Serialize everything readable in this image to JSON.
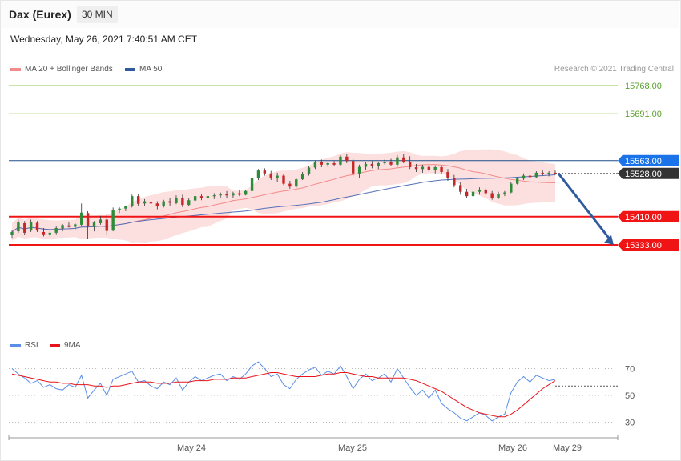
{
  "header": {
    "title": "Dax (Eurex)",
    "interval": "30 MIN",
    "timestamp": "Wednesday, May 26, 2021 7:40:51 AM CET",
    "credit": "Research © 2021 Trading Central"
  },
  "legend_price": [
    {
      "label": "MA 20 + Bollinger Bands",
      "color": "#f28b8b"
    },
    {
      "label": "MA 50",
      "color": "#2f5a9e"
    }
  ],
  "legend_rsi": [
    {
      "label": "RSI",
      "color": "#5b8ee6"
    },
    {
      "label": "9MA",
      "color": "#e8141b"
    }
  ],
  "colors": {
    "up": "#2e8b3a",
    "down": "#c62828",
    "resistance": "#8cc84b",
    "support": "#f01414",
    "current_line": "#1d4e89",
    "current_badge": "#1a73e8",
    "last_badge": "#333333",
    "band_fill": "#fbdada",
    "ma20": "#f28b8b",
    "ma50": "#5571b8",
    "forecast_arrow": "#2f5a9e"
  },
  "chart_data": [
    {
      "type": "candlestick",
      "ylim": [
        15120,
        15860
      ],
      "level_lines": [
        {
          "value": 15768.0,
          "label": "15768.00",
          "kind": "resistance"
        },
        {
          "value": 15691.0,
          "label": "15691.00",
          "kind": "resistance"
        },
        {
          "value": 15563.0,
          "label": "15563.00",
          "kind": "current"
        },
        {
          "value": 15528.0,
          "label": "15528.00",
          "kind": "last"
        },
        {
          "value": 15410.0,
          "label": "15410.00",
          "kind": "support"
        },
        {
          "value": 15333.0,
          "label": "15333.00",
          "kind": "support"
        }
      ],
      "x_ticks": [
        "May 24",
        "May 25",
        "May 26",
        "May 29"
      ],
      "forecast": {
        "from": 15528,
        "to": 15333
      },
      "candles": [
        [
          15361,
          15372,
          15352,
          15368
        ],
        [
          15370,
          15402,
          15365,
          15394
        ],
        [
          15392,
          15398,
          15360,
          15366
        ],
        [
          15372,
          15402,
          15368,
          15395
        ],
        [
          15393,
          15398,
          15368,
          15372
        ],
        [
          15368,
          15379,
          15356,
          15362
        ],
        [
          15362,
          15372,
          15355,
          15366
        ],
        [
          15366,
          15383,
          15362,
          15379
        ],
        [
          15378,
          15390,
          15370,
          15387
        ],
        [
          15386,
          15394,
          15380,
          15382
        ],
        [
          15382,
          15392,
          15375,
          15389
        ],
        [
          15388,
          15446,
          15385,
          15421
        ],
        [
          15420,
          15425,
          15350,
          15383
        ],
        [
          15382,
          15398,
          15370,
          15394
        ],
        [
          15392,
          15412,
          15388,
          15402
        ],
        [
          15402,
          15418,
          15360,
          15371
        ],
        [
          15372,
          15435,
          15370,
          15428
        ],
        [
          15428,
          15436,
          15420,
          15432
        ],
        [
          15432,
          15440,
          15425,
          15438
        ],
        [
          15438,
          15470,
          15435,
          15466
        ],
        [
          15466,
          15472,
          15440,
          15445
        ],
        [
          15446,
          15458,
          15440,
          15452
        ],
        [
          15450,
          15462,
          15438,
          15446
        ],
        [
          15446,
          15452,
          15430,
          15440
        ],
        [
          15440,
          15456,
          15435,
          15452
        ],
        [
          15452,
          15460,
          15440,
          15448
        ],
        [
          15447,
          15468,
          15444,
          15461
        ],
        [
          15462,
          15470,
          15436,
          15442
        ],
        [
          15442,
          15460,
          15438,
          15455
        ],
        [
          15454,
          15470,
          15450,
          15466
        ],
        [
          15466,
          15472,
          15455,
          15461
        ],
        [
          15461,
          15470,
          15452,
          15466
        ],
        [
          15466,
          15474,
          15458,
          15468
        ],
        [
          15468,
          15476,
          15460,
          15472
        ],
        [
          15472,
          15480,
          15462,
          15468
        ],
        [
          15468,
          15478,
          15460,
          15474
        ],
        [
          15474,
          15483,
          15466,
          15470
        ],
        [
          15470,
          15484,
          15468,
          15480
        ],
        [
          15480,
          15520,
          15476,
          15515
        ],
        [
          15515,
          15540,
          15510,
          15536
        ],
        [
          15536,
          15542,
          15522,
          15528
        ],
        [
          15528,
          15535,
          15510,
          15515
        ],
        [
          15515,
          15530,
          15505,
          15522
        ],
        [
          15522,
          15526,
          15496,
          15500
        ],
        [
          15500,
          15508,
          15486,
          15492
        ],
        [
          15492,
          15516,
          15488,
          15512
        ],
        [
          15512,
          15532,
          15510,
          15526
        ],
        [
          15526,
          15548,
          15522,
          15544
        ],
        [
          15544,
          15564,
          15540,
          15560
        ],
        [
          15560,
          15566,
          15545,
          15552
        ],
        [
          15552,
          15560,
          15546,
          15556
        ],
        [
          15556,
          15562,
          15548,
          15552
        ],
        [
          15552,
          15578,
          15548,
          15574
        ],
        [
          15574,
          15582,
          15556,
          15562
        ],
        [
          15562,
          15568,
          15520,
          15528
        ],
        [
          15528,
          15552,
          15515,
          15546
        ],
        [
          15546,
          15560,
          15538,
          15554
        ],
        [
          15554,
          15562,
          15542,
          15548
        ],
        [
          15548,
          15560,
          15540,
          15556
        ],
        [
          15556,
          15566,
          15552,
          15560
        ],
        [
          15560,
          15568,
          15548,
          15552
        ],
        [
          15552,
          15578,
          15546,
          15572
        ],
        [
          15572,
          15582,
          15556,
          15560
        ],
        [
          15560,
          15575,
          15540,
          15545
        ],
        [
          15545,
          15554,
          15532,
          15540
        ],
        [
          15540,
          15552,
          15530,
          15546
        ],
        [
          15546,
          15552,
          15532,
          15538
        ],
        [
          15538,
          15550,
          15528,
          15545
        ],
        [
          15545,
          15550,
          15526,
          15532
        ],
        [
          15532,
          15540,
          15508,
          15515
        ],
        [
          15515,
          15524,
          15490,
          15496
        ],
        [
          15496,
          15505,
          15470,
          15478
        ],
        [
          15478,
          15486,
          15460,
          15466
        ],
        [
          15466,
          15482,
          15462,
          15478
        ],
        [
          15478,
          15490,
          15470,
          15484
        ],
        [
          15484,
          15488,
          15468,
          15474
        ],
        [
          15474,
          15480,
          15456,
          15462
        ],
        [
          15462,
          15478,
          15458,
          15472
        ],
        [
          15472,
          15480,
          15466,
          15476
        ],
        [
          15476,
          15504,
          15474,
          15500
        ],
        [
          15500,
          15518,
          15498,
          15514
        ],
        [
          15514,
          15528,
          15510,
          15522
        ],
        [
          15522,
          15530,
          15514,
          15518
        ],
        [
          15518,
          15534,
          15516,
          15530
        ],
        [
          15530,
          15536,
          15522,
          15526
        ],
        [
          15526,
          15534,
          15520,
          15530
        ],
        [
          15530,
          15536,
          15524,
          15528
        ]
      ]
    },
    {
      "type": "line",
      "title": "RSI",
      "ylim": [
        20,
        80
      ],
      "y_ticks": [
        30,
        50,
        70
      ],
      "series": [
        {
          "name": "RSI",
          "values": [
            70,
            66,
            63,
            59,
            61,
            56,
            58,
            55,
            54,
            58,
            56,
            65,
            48,
            54,
            59,
            50,
            62,
            64,
            66,
            68,
            60,
            61,
            57,
            55,
            60,
            58,
            63,
            54,
            60,
            64,
            61,
            63,
            65,
            66,
            61,
            64,
            62,
            66,
            72,
            75,
            70,
            64,
            66,
            58,
            55,
            62,
            66,
            69,
            71,
            65,
            68,
            66,
            72,
            64,
            55,
            62,
            66,
            61,
            63,
            66,
            60,
            70,
            63,
            56,
            50,
            54,
            48,
            54,
            44,
            40,
            37,
            33,
            31,
            34,
            37,
            35,
            31,
            34,
            36,
            52,
            60,
            64,
            60,
            65,
            63,
            61,
            62
          ]
        },
        {
          "name": "9MA",
          "values": [
            66,
            65,
            64,
            63,
            62,
            61,
            60,
            60,
            59,
            59,
            58,
            58,
            58,
            57,
            57,
            56,
            57,
            57,
            58,
            59,
            60,
            60,
            60,
            59,
            59,
            59,
            60,
            60,
            60,
            61,
            61,
            61,
            62,
            62,
            62,
            63,
            63,
            63,
            64,
            65,
            66,
            67,
            67,
            66,
            65,
            64,
            64,
            64,
            64,
            65,
            66,
            66,
            67,
            67,
            66,
            65,
            64,
            64,
            63,
            63,
            63,
            63,
            63,
            62,
            61,
            59,
            57,
            55,
            53,
            50,
            47,
            44,
            41,
            39,
            37,
            36,
            35,
            34,
            34,
            36,
            39,
            43,
            47,
            51,
            55,
            58,
            61
          ]
        }
      ]
    }
  ]
}
